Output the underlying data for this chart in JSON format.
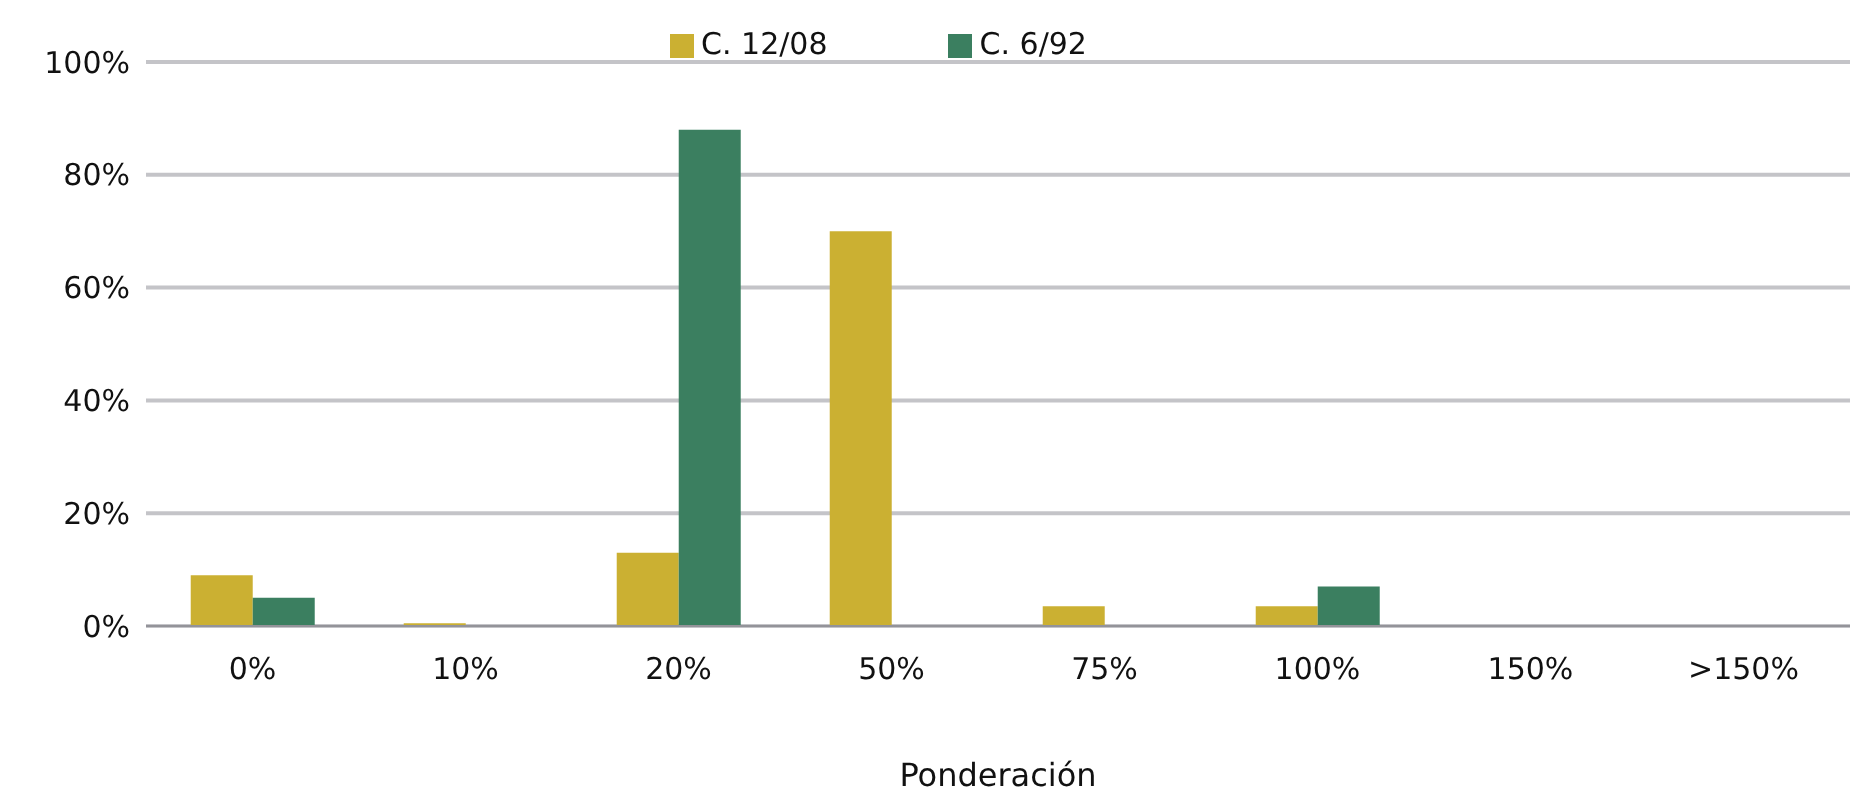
{
  "chart_data": {
    "type": "bar",
    "xlabel": "Ponderación",
    "categories": [
      "0%",
      "10%",
      "20%",
      "50%",
      "75%",
      "100%",
      "150%",
      ">150%"
    ],
    "series": [
      {
        "name": "C. 12/08",
        "color": "#cbb032",
        "values": [
          9,
          0.5,
          13,
          70,
          3.5,
          3.5,
          0,
          0
        ]
      },
      {
        "name": "C. 6/92",
        "color": "#3b7f60",
        "values": [
          5,
          0,
          88,
          0,
          0,
          7,
          0,
          0
        ]
      }
    ],
    "ylim": [
      0,
      100
    ],
    "yticks": [
      {
        "value": 0,
        "label": "0%"
      },
      {
        "value": 20,
        "label": "20%"
      },
      {
        "value": 40,
        "label": "40%"
      },
      {
        "value": 60,
        "label": "60%"
      },
      {
        "value": 80,
        "label": "80%"
      },
      {
        "value": 100,
        "label": "100%"
      }
    ],
    "grid": "y",
    "legend": "top"
  }
}
